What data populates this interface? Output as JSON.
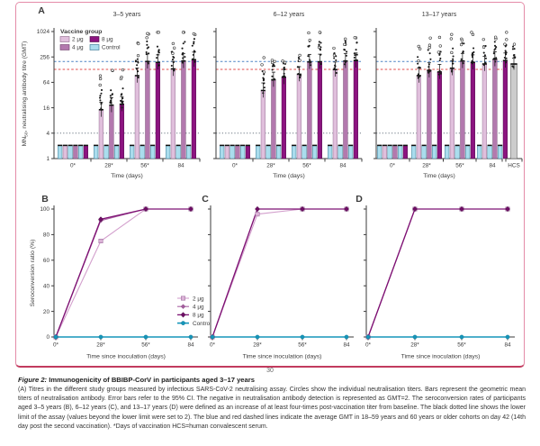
{
  "page": {
    "page_number": "30"
  },
  "colors": {
    "dose2": "#e0bfdc",
    "dose2_edge": "#8f6a8c",
    "dose4": "#b379ae",
    "dose4_edge": "#6d4069",
    "dose8": "#8c1480",
    "dose8_edge": "#4a0a43",
    "control_fill": "#aadded",
    "control_edge": "#2f6f8d",
    "control_line": "#1596ba",
    "line2": "#d3a0cd",
    "line4": "#aa62a4",
    "line8": "#7e1173",
    "hcs_fill": "#cccccc",
    "hcs_edge": "#555555",
    "ref_blue": "#4d82c4",
    "ref_red": "#e14b4b",
    "lower_limit": "#53626f",
    "axis": "#3b3b3b",
    "frame_pink": "#e48ba8",
    "rule_crimson": "#c23b5e"
  },
  "panel_a": {
    "label": "A",
    "ylabel": {
      "prefix": "MN",
      "sub": "50",
      "suffix": ", neutralising antibody titre (GMT)"
    },
    "yticks": [
      1024,
      256,
      64,
      16,
      4,
      1
    ],
    "xlabel": "Time (days)",
    "xticks": [
      "0*",
      "28*",
      "56*",
      "84"
    ],
    "legend": {
      "title": "Vaccine group",
      "items": [
        "2 μg",
        "4 μg",
        "8 μg",
        "Control"
      ]
    },
    "hcs_label": "HCS",
    "ref_lines": {
      "blue_gmt_18_59y": 200,
      "red_gmt_60y_plus": 130,
      "assay_lower_limit": 4
    }
  },
  "panel_bcd": {
    "labels": [
      "B",
      "C",
      "D"
    ],
    "ylabel": "Seroconversion ratio (%)",
    "yticks": [
      0,
      20,
      40,
      60,
      80,
      100
    ],
    "xlabel": "Time since inoculation (days)",
    "xticks": [
      "0*",
      "28*",
      "56*",
      "84"
    ],
    "legend": [
      "2 μg",
      "4 μg",
      "8 μg",
      "Control"
    ]
  },
  "chart_data": [
    {
      "panel": "A-1",
      "type": "bar",
      "title": "3–5 years",
      "yscale": "log4",
      "ylim": [
        1,
        1024
      ],
      "categories": [
        "0*",
        "28*",
        "56*",
        "84"
      ],
      "series": [
        {
          "name": "2 μg",
          "values": [
            2,
            14,
            90,
            130
          ]
        },
        {
          "name": "4 μg",
          "values": [
            2,
            18,
            195,
            200
          ]
        },
        {
          "name": "8 μg",
          "values": [
            2,
            19,
            185,
            215
          ]
        },
        {
          "name": "Control",
          "values": [
            2,
            2,
            2,
            2
          ]
        }
      ]
    },
    {
      "panel": "A-2",
      "type": "bar",
      "title": "6–12 years",
      "yscale": "log4",
      "ylim": [
        1,
        1024
      ],
      "categories": [
        "0*",
        "28*",
        "56*",
        "84"
      ],
      "series": [
        {
          "name": "2 μg",
          "values": [
            2,
            40,
            97,
            125
          ]
        },
        {
          "name": "4 μg",
          "values": [
            2,
            72,
            190,
            200
          ]
        },
        {
          "name": "8 μg",
          "values": [
            2,
            83,
            192,
            205
          ]
        },
        {
          "name": "Control",
          "values": [
            2,
            2,
            2,
            2
          ]
        }
      ]
    },
    {
      "panel": "A-3",
      "type": "bar",
      "title": "13–17 years",
      "yscale": "log4",
      "ylim": [
        1,
        1024
      ],
      "categories": [
        "0*",
        "28*",
        "56*",
        "84"
      ],
      "series": [
        {
          "name": "2 μg",
          "values": [
            2,
            90,
            135,
            170
          ]
        },
        {
          "name": "4 μg",
          "values": [
            2,
            120,
            200,
            220
          ]
        },
        {
          "name": "8 μg",
          "values": [
            2,
            110,
            185,
            205
          ]
        },
        {
          "name": "Control",
          "values": [
            2,
            2,
            2,
            2
          ]
        }
      ],
      "hcs": {
        "label": "HCS",
        "value": 170
      }
    },
    {
      "panel": "B",
      "type": "line",
      "ylim": [
        0,
        100
      ],
      "x": [
        "0*",
        "28*",
        "56*",
        "84"
      ],
      "series": [
        {
          "name": "2 μg",
          "values": [
            0,
            75,
            100,
            100
          ]
        },
        {
          "name": "4 μg",
          "values": [
            0,
            91,
            100,
            100
          ]
        },
        {
          "name": "8 μg",
          "values": [
            0,
            92,
            100,
            100
          ]
        },
        {
          "name": "Control",
          "values": [
            0,
            0,
            0,
            0
          ]
        }
      ]
    },
    {
      "panel": "C",
      "type": "line",
      "ylim": [
        0,
        100
      ],
      "x": [
        "0*",
        "28*",
        "56*",
        "84"
      ],
      "series": [
        {
          "name": "2 μg",
          "values": [
            0,
            96,
            100,
            100
          ]
        },
        {
          "name": "4 μg",
          "values": [
            0,
            100,
            100,
            100
          ]
        },
        {
          "name": "8 μg",
          "values": [
            0,
            100,
            100,
            100
          ]
        },
        {
          "name": "Control",
          "values": [
            0,
            0,
            0,
            0
          ]
        }
      ]
    },
    {
      "panel": "D",
      "type": "line",
      "ylim": [
        0,
        100
      ],
      "x": [
        "0*",
        "28*",
        "56*",
        "84"
      ],
      "series": [
        {
          "name": "2 μg",
          "values": [
            0,
            100,
            100,
            100
          ]
        },
        {
          "name": "4 μg",
          "values": [
            0,
            100,
            100,
            100
          ]
        },
        {
          "name": "8 μg",
          "values": [
            0,
            100,
            100,
            100
          ]
        },
        {
          "name": "Control",
          "values": [
            0,
            0,
            0,
            0
          ]
        }
      ]
    }
  ],
  "caption": {
    "label": "Figure 2:",
    "title": "Immunogenicity of BBIBP-CorV in participants aged 3–17 years",
    "body": "(A) Titres in the different study groups measured by infectious SARS-CoV-2 neutralising assay. Circles show the individual neutralisation titers. Bars represent the geometric mean titers of neutralisation antibody. Error bars refer to the 95% CI. The negative in neutralisation antibody detection is represented as GMT=2. The seroconversion rates of participants aged 3–5 years (B), 6–12 years (C), and 13–17 years (D) were defined as an increase of at least four-times post-vaccination titer from baseline. The black dotted line shows the lower limit of the assay (values beyond the lower limit were set to 2). The blue and red dashed lines indicate the average GMT in 18–59 years and 60 years or older cohorts on day 42 (14th day post the second vaccination). *Days of vaccination HCS=human convalescent serum."
  }
}
